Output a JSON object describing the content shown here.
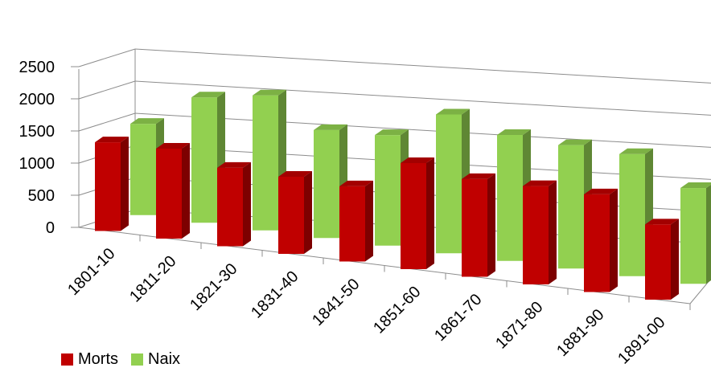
{
  "chart_data": {
    "type": "bar",
    "categories": [
      "1801-10",
      "1811-20",
      "1821-30",
      "1831-40",
      "1841-50",
      "1851-60",
      "1861-70",
      "1871-80",
      "1881-90",
      "1891-00"
    ],
    "series": [
      {
        "name": "Morts",
        "values": [
          1380,
          1400,
          1220,
          1200,
          1170,
          1650,
          1520,
          1530,
          1520,
          1170
        ],
        "color": "#c00000"
      },
      {
        "name": "Naix",
        "values": [
          1420,
          1950,
          2100,
          1680,
          1720,
          2160,
          1960,
          1920,
          1900,
          1490
        ],
        "color": "#92d050"
      }
    ],
    "yticks": [
      0,
      500,
      1000,
      1500,
      2000,
      2500
    ],
    "ylim": [
      0,
      2500
    ],
    "grid": true,
    "legend_position": "bottom-left",
    "style": "3d-column"
  }
}
